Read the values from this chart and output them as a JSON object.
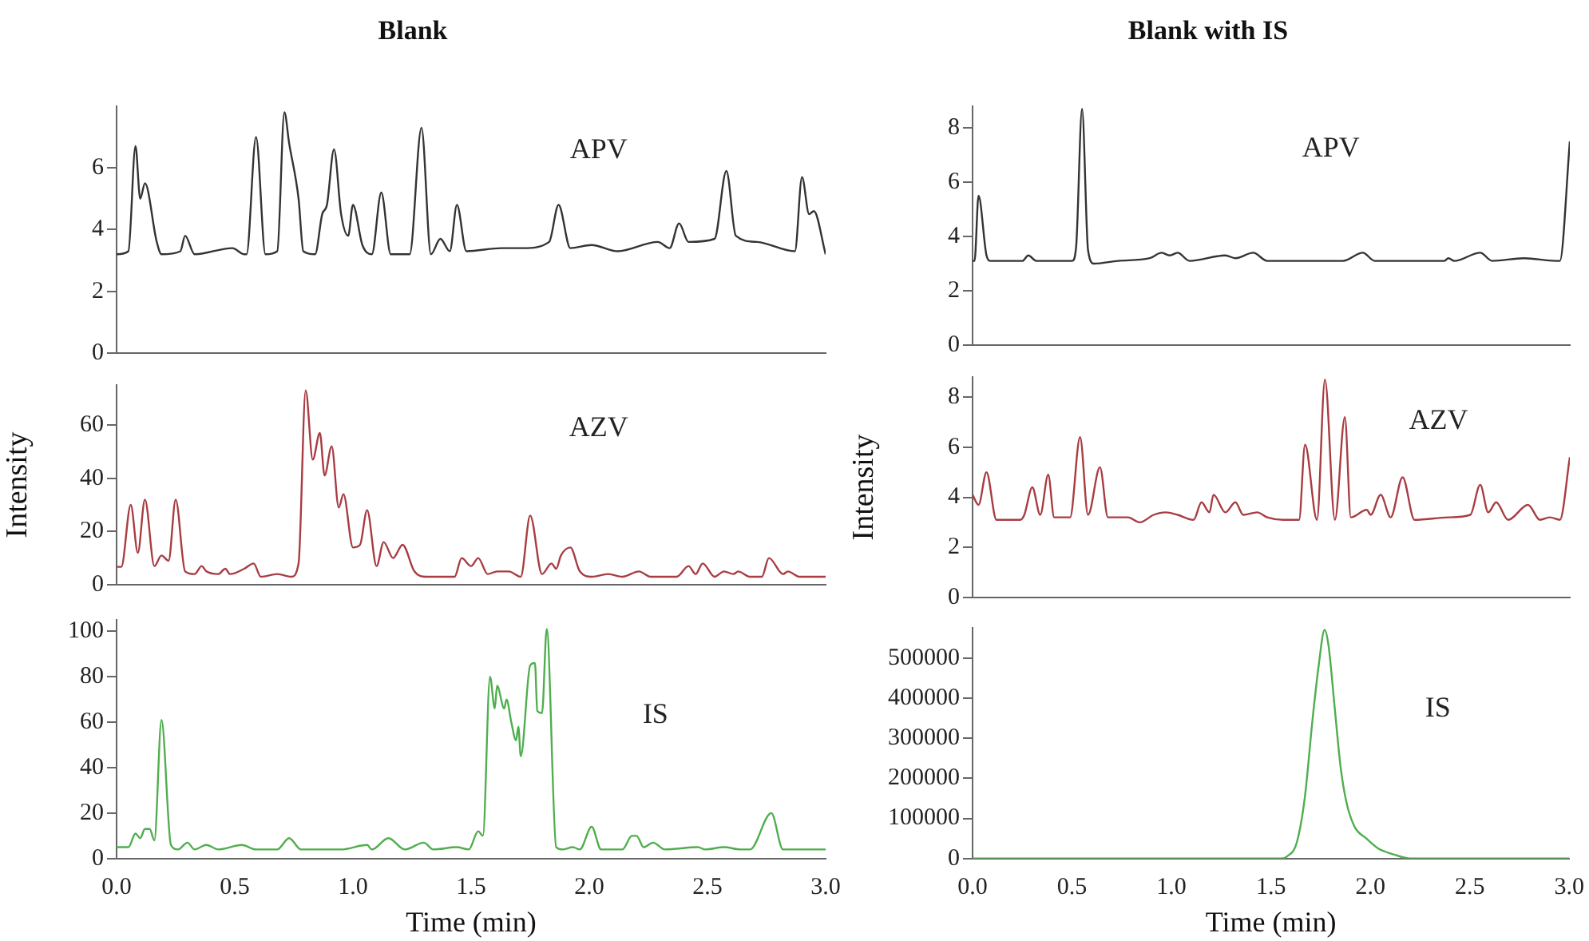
{
  "chart_data": [
    {
      "type": "line",
      "title": "Blank",
      "annotations": [
        "APV"
      ],
      "tick_labels": "y",
      "xlim": [
        0,
        3
      ],
      "ylim": [
        0,
        8
      ],
      "yticks": [
        0,
        2,
        4,
        6
      ],
      "grid": false,
      "x": [
        0,
        0.05,
        0.08,
        0.1,
        0.12,
        0.17,
        0.19,
        0.27,
        0.29,
        0.33,
        0.49,
        0.54,
        0.55,
        0.59,
        0.63,
        0.68,
        0.71,
        0.73,
        0.77,
        0.79,
        0.84,
        0.87,
        0.89,
        0.92,
        0.95,
        0.98,
        1.0,
        1.04,
        1.08,
        1.12,
        1.16,
        1.24,
        1.29,
        1.33,
        1.37,
        1.41,
        1.44,
        1.48,
        1.63,
        1.72,
        1.83,
        1.87,
        1.92,
        2.01,
        2.12,
        2.29,
        2.34,
        2.38,
        2.42,
        2.53,
        2.58,
        2.62,
        2.71,
        2.87,
        2.9,
        2.93,
        2.95,
        3.0
      ],
      "series": [
        {
          "color": "#333333",
          "values": [
            3.2,
            3.3,
            6.7,
            5.0,
            5.5,
            3.6,
            3.2,
            3.3,
            3.8,
            3.2,
            3.4,
            3.2,
            3.2,
            7.0,
            3.2,
            3.3,
            7.8,
            6.8,
            5.0,
            3.3,
            3.2,
            4.5,
            4.8,
            6.6,
            4.5,
            3.8,
            4.8,
            3.5,
            3.2,
            5.2,
            3.2,
            3.2,
            7.3,
            3.2,
            3.7,
            3.3,
            4.8,
            3.3,
            3.4,
            3.4,
            3.6,
            4.8,
            3.4,
            3.5,
            3.3,
            3.6,
            3.4,
            4.2,
            3.6,
            3.7,
            5.9,
            3.8,
            3.6,
            3.3,
            5.7,
            4.5,
            4.6,
            3.2
          ]
        }
      ]
    },
    {
      "type": "line",
      "ylabel": "Intensity",
      "annotations": [
        "AZV"
      ],
      "tick_labels": "y",
      "xlim": [
        0,
        3
      ],
      "ylim": [
        0,
        75
      ],
      "yticks": [
        0,
        20,
        40,
        60
      ],
      "grid": false,
      "x": [
        0,
        0.02,
        0.06,
        0.09,
        0.12,
        0.16,
        0.19,
        0.22,
        0.25,
        0.29,
        0.33,
        0.36,
        0.38,
        0.43,
        0.46,
        0.48,
        0.54,
        0.58,
        0.61,
        0.68,
        0.74,
        0.77,
        0.8,
        0.83,
        0.86,
        0.88,
        0.91,
        0.94,
        0.96,
        1.0,
        1.03,
        1.06,
        1.1,
        1.13,
        1.17,
        1.21,
        1.26,
        1.31,
        1.43,
        1.46,
        1.5,
        1.53,
        1.57,
        1.61,
        1.66,
        1.71,
        1.75,
        1.8,
        1.84,
        1.86,
        1.88,
        1.92,
        1.96,
        2.01,
        2.08,
        2.14,
        2.21,
        2.26,
        2.37,
        2.42,
        2.45,
        2.48,
        2.53,
        2.57,
        2.61,
        2.63,
        2.68,
        2.73,
        2.76,
        2.82,
        2.84,
        2.89,
        3.0
      ],
      "series": [
        {
          "color": "#a83c42",
          "values": [
            6.7,
            6.7,
            30,
            12,
            32,
            7,
            11,
            9,
            32,
            5,
            4,
            7,
            5,
            4,
            6,
            4,
            6,
            8,
            3,
            4,
            3,
            8,
            73,
            47,
            57,
            41,
            52,
            29,
            34,
            14,
            15,
            28,
            7,
            16,
            10,
            15,
            5,
            3,
            3,
            10,
            7,
            10,
            4,
            5,
            5,
            3,
            26,
            4,
            8,
            6,
            11,
            14,
            5,
            3,
            4,
            3,
            5,
            3,
            3,
            7,
            4,
            8,
            3,
            5,
            4,
            5,
            3,
            3,
            10,
            4,
            5,
            3,
            3
          ]
        }
      ]
    },
    {
      "type": "line",
      "xlabel": "Time (min)",
      "annotations": [
        "IS"
      ],
      "xlim": [
        0,
        3
      ],
      "ylim": [
        0,
        105
      ],
      "yticks": [
        0,
        20,
        40,
        60,
        80,
        100
      ],
      "grid": false,
      "xticks": [
        {
          "value": 0,
          "label": "0.0"
        },
        {
          "value": 0.5,
          "label": "0.5"
        },
        {
          "value": 1,
          "label": "1.0"
        },
        {
          "value": 1.5,
          "label": "1.5"
        },
        {
          "value": 2,
          "label": "2.0"
        },
        {
          "value": 2.5,
          "label": "2.5"
        },
        {
          "value": 3,
          "label": "3.0"
        }
      ],
      "x": [
        0,
        0.05,
        0.08,
        0.1,
        0.12,
        0.14,
        0.16,
        0.19,
        0.23,
        0.26,
        0.3,
        0.33,
        0.38,
        0.43,
        0.53,
        0.59,
        0.68,
        0.73,
        0.78,
        0.95,
        1.06,
        1.08,
        1.15,
        1.22,
        1.3,
        1.34,
        1.44,
        1.49,
        1.53,
        1.55,
        1.58,
        1.6,
        1.61,
        1.64,
        1.65,
        1.67,
        1.69,
        1.7,
        1.71,
        1.75,
        1.77,
        1.78,
        1.8,
        1.82,
        1.86,
        1.89,
        1.93,
        1.96,
        2.01,
        2.05,
        2.14,
        2.18,
        2.2,
        2.23,
        2.27,
        2.32,
        2.46,
        2.49,
        2.57,
        2.64,
        2.68,
        2.77,
        2.82,
        3.0
      ],
      "series": [
        {
          "color": "#4fae4f",
          "values": [
            5,
            5,
            11,
            9,
            13,
            13,
            8,
            61,
            6,
            4,
            7,
            4,
            6,
            4,
            6,
            4,
            4,
            9,
            4,
            4,
            6,
            4,
            9,
            4,
            7,
            4,
            5,
            4,
            12,
            10,
            80,
            66,
            76,
            66,
            70,
            60,
            52,
            58,
            45,
            85,
            86,
            65,
            64,
            101,
            5,
            4,
            5,
            4,
            14,
            4,
            4,
            10,
            10,
            5,
            7,
            4,
            5,
            4,
            5,
            4,
            4,
            20,
            4,
            4
          ]
        }
      ]
    },
    {
      "type": "line",
      "title": "Blank with IS",
      "annotations": [
        "APV"
      ],
      "tick_labels": "y",
      "xlim": [
        0,
        3
      ],
      "ylim": [
        0,
        8.8
      ],
      "yticks": [
        0,
        2,
        4,
        6,
        8
      ],
      "grid": false,
      "x": [
        0,
        0.01,
        0.03,
        0.07,
        0.09,
        0.25,
        0.28,
        0.32,
        0.5,
        0.52,
        0.55,
        0.58,
        0.61,
        0.73,
        0.89,
        0.95,
        0.99,
        1.03,
        1.09,
        1.27,
        1.32,
        1.41,
        1.48,
        1.86,
        1.96,
        2.02,
        2.37,
        2.39,
        2.42,
        2.55,
        2.61,
        2.77,
        2.93,
        2.95,
        3.0
      ],
      "series": [
        {
          "color": "#333333",
          "values": [
            3.1,
            3.1,
            5.5,
            3.3,
            3.1,
            3.1,
            3.3,
            3.1,
            3.1,
            3.6,
            8.7,
            3.5,
            3.0,
            3.1,
            3.2,
            3.4,
            3.3,
            3.4,
            3.1,
            3.3,
            3.2,
            3.4,
            3.1,
            3.1,
            3.4,
            3.1,
            3.1,
            3.2,
            3.1,
            3.4,
            3.1,
            3.2,
            3.1,
            3.1,
            7.5
          ]
        }
      ]
    },
    {
      "type": "line",
      "ylabel": "Intensity",
      "annotations": [
        "AZV"
      ],
      "tick_labels": "y",
      "xlim": [
        0,
        3
      ],
      "ylim": [
        0,
        8.8
      ],
      "yticks": [
        0,
        2,
        4,
        6,
        8
      ],
      "grid": false,
      "x": [
        0,
        0.03,
        0.07,
        0.12,
        0.24,
        0.26,
        0.3,
        0.34,
        0.38,
        0.41,
        0.49,
        0.54,
        0.58,
        0.64,
        0.68,
        0.78,
        0.84,
        0.91,
        0.97,
        1.03,
        1.11,
        1.15,
        1.19,
        1.21,
        1.27,
        1.32,
        1.36,
        1.43,
        1.48,
        1.56,
        1.64,
        1.67,
        1.73,
        1.77,
        1.82,
        1.87,
        1.9,
        1.98,
        2.0,
        2.05,
        2.1,
        2.16,
        2.22,
        2.39,
        2.5,
        2.55,
        2.59,
        2.63,
        2.69,
        2.79,
        2.85,
        2.9,
        2.95,
        3.0
      ],
      "series": [
        {
          "color": "#a83c42",
          "values": [
            4.1,
            3.7,
            5.0,
            3.1,
            3.1,
            3.3,
            4.4,
            3.3,
            4.9,
            3.2,
            3.2,
            6.4,
            3.3,
            5.2,
            3.2,
            3.2,
            3.0,
            3.3,
            3.4,
            3.3,
            3.1,
            3.8,
            3.4,
            4.1,
            3.4,
            3.8,
            3.3,
            3.4,
            3.2,
            3.1,
            3.1,
            6.1,
            3.1,
            8.7,
            3.1,
            7.2,
            3.2,
            3.5,
            3.3,
            4.1,
            3.2,
            4.8,
            3.1,
            3.2,
            3.3,
            4.5,
            3.4,
            3.8,
            3.1,
            3.7,
            3.1,
            3.2,
            3.1,
            5.6
          ]
        }
      ]
    },
    {
      "type": "line",
      "xlabel": "Time (min)",
      "annotations": [
        "IS"
      ],
      "xlim": [
        0,
        3
      ],
      "ylim": [
        0,
        575000
      ],
      "yticks": [
        0,
        100000,
        200000,
        300000,
        400000,
        500000
      ],
      "grid": false,
      "xticks": [
        {
          "value": 0,
          "label": "0.0"
        },
        {
          "value": 0.5,
          "label": "0.5"
        },
        {
          "value": 1,
          "label": "1.0"
        },
        {
          "value": 1.5,
          "label": "1.5"
        },
        {
          "value": 2,
          "label": "2.0"
        },
        {
          "value": 2.5,
          "label": "2.5"
        },
        {
          "value": 3,
          "label": "3.0"
        }
      ],
      "x": [
        0,
        1.55,
        1.58,
        1.63,
        1.67,
        1.71,
        1.74,
        1.77,
        1.79,
        1.82,
        1.85,
        1.88,
        1.92,
        1.98,
        2.04,
        2.12,
        2.2,
        3.0
      ],
      "series": [
        {
          "color": "#4fae4f",
          "values": [
            0,
            0,
            5000,
            40000,
            150000,
            350000,
            480000,
            570000,
            530000,
            380000,
            230000,
            140000,
            80000,
            50000,
            25000,
            10000,
            0,
            0
          ]
        }
      ]
    }
  ]
}
